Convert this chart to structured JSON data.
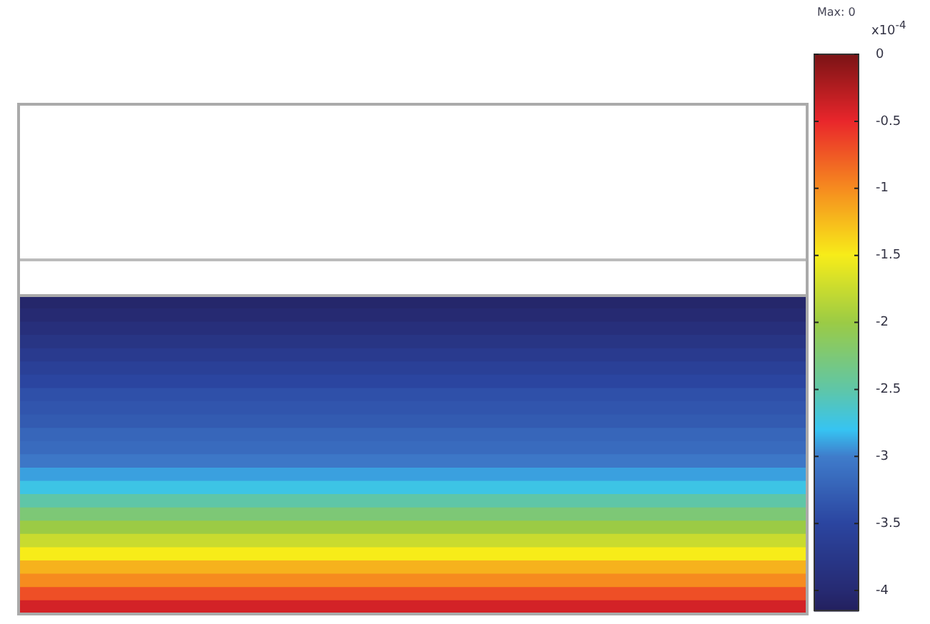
{
  "chart_data": {
    "type": "heatmap",
    "categories": [
      null
    ],
    "y_categories": [
      null,
      null,
      null,
      null,
      null,
      null,
      null,
      null,
      null,
      null,
      null,
      null,
      null,
      null,
      null,
      null,
      null,
      null,
      null,
      null,
      null,
      null,
      null,
      null
    ],
    "cells": [
      [
        -4.05
      ],
      [
        -4.0
      ],
      [
        -3.9
      ],
      [
        -3.8
      ],
      [
        -3.7
      ],
      [
        -3.6
      ],
      [
        -3.5
      ],
      [
        -3.4
      ],
      [
        -3.35
      ],
      [
        -3.3
      ],
      [
        -3.2
      ],
      [
        -3.15
      ],
      [
        -3.05
      ],
      [
        -2.9
      ],
      [
        -2.75
      ],
      [
        -2.5
      ],
      [
        -2.25
      ],
      [
        -2.0
      ],
      [
        -1.75
      ],
      [
        -1.5
      ],
      [
        -1.2
      ],
      [
        -1.0
      ],
      [
        -0.7
      ],
      [
        -0.4
      ]
    ],
    "clim": [
      -4.15,
      0
    ],
    "cticks": [
      -4,
      -3.5,
      -3,
      -2.5,
      -2,
      -1.5,
      -1,
      -0.5,
      0
    ],
    "clabel": "x10$^{-4}$",
    "annotations": [
      "Max: 0"
    ],
    "tick_labels": false
  }
}
